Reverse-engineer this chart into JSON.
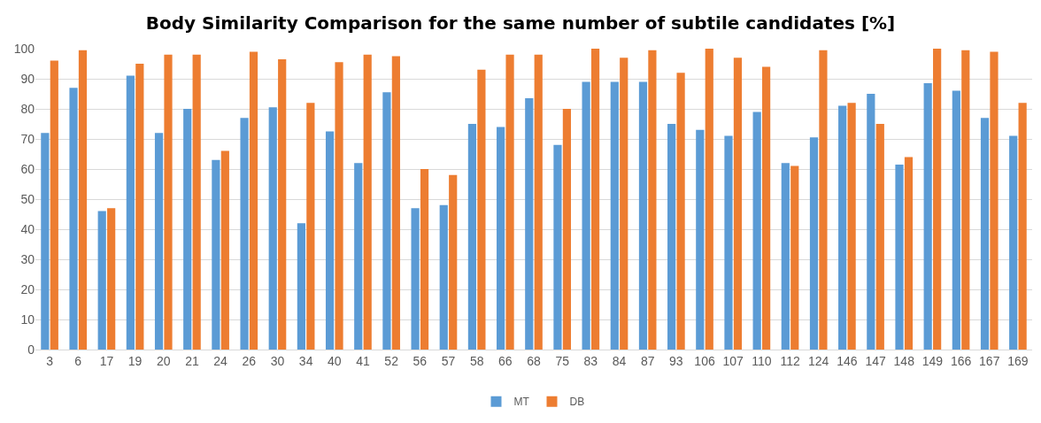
{
  "chart_data": {
    "type": "bar",
    "title": "Body Similarity Comparison for the same number of subtile candidates [%]",
    "categories": [
      "3",
      "6",
      "17",
      "19",
      "20",
      "21",
      "24",
      "26",
      "30",
      "34",
      "40",
      "41",
      "52",
      "56",
      "57",
      "58",
      "66",
      "68",
      "75",
      "83",
      "84",
      "87",
      "93",
      "106",
      "107",
      "110",
      "112",
      "124",
      "146",
      "147",
      "148",
      "149",
      "166",
      "167",
      "169"
    ],
    "series": [
      {
        "name": "MT",
        "color": "#5b9bd5",
        "values": [
          72,
          87,
          46,
          91,
          72,
          80,
          63,
          77,
          80.5,
          42,
          72.5,
          62,
          85.5,
          47,
          48,
          75,
          74,
          83.5,
          68,
          89,
          89,
          89,
          75,
          73,
          71,
          79,
          62,
          70.5,
          81,
          85,
          61.5,
          88.5,
          86,
          77,
          71
        ]
      },
      {
        "name": "DB",
        "color": "#ed7d31",
        "values": [
          96,
          99.5,
          47,
          95,
          98,
          98,
          66,
          99,
          96.5,
          82,
          95.5,
          98,
          97.5,
          60,
          58,
          93,
          98,
          98,
          80,
          100,
          97,
          99.5,
          92,
          100,
          97,
          94,
          61,
          99.5,
          82,
          75,
          64,
          100,
          99.5,
          99,
          82
        ]
      }
    ],
    "ylim": [
      0,
      100
    ],
    "yticks": [
      0,
      10,
      20,
      30,
      40,
      50,
      60,
      70,
      80,
      90,
      100
    ],
    "grid": "y",
    "legend": "bottom"
  }
}
